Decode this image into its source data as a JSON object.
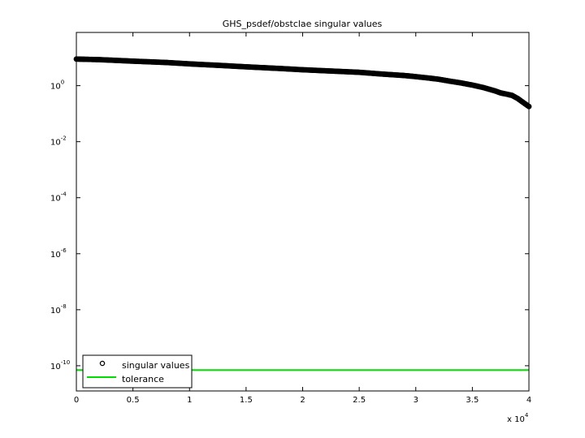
{
  "chart_data": {
    "type": "scatter",
    "title": "GHS_psdef/obstclae singular values",
    "xlabel": "",
    "ylabel": "",
    "x_multiplier_label": {
      "prefix": "x 10",
      "exponent": "4"
    },
    "xlim": [
      0,
      40000
    ],
    "ylim_log10": [
      -10.9,
      1.9
    ],
    "y_scale": "log",
    "grid": false,
    "legend_position": "bottom-left",
    "x_ticks": [
      0,
      5000,
      10000,
      15000,
      20000,
      25000,
      30000,
      35000,
      40000
    ],
    "x_tick_labels": [
      "0",
      "0.5",
      "1",
      "1.5",
      "2",
      "2.5",
      "3",
      "3.5",
      "4"
    ],
    "y_ticks_log10": [
      0,
      -2,
      -4,
      -6,
      -8,
      -10
    ],
    "y_tick_labels": [
      {
        "base": "10",
        "exp": "0"
      },
      {
        "base": "10",
        "exp": "-2"
      },
      {
        "base": "10",
        "exp": "-4"
      },
      {
        "base": "10",
        "exp": "-6"
      },
      {
        "base": "10",
        "exp": "-8"
      },
      {
        "base": "10",
        "exp": "-10"
      }
    ],
    "series": [
      {
        "name": "singular values",
        "marker": "circle",
        "color": "#000000",
        "x": [
          0,
          2000,
          5000,
          8000,
          10000,
          13000,
          15000,
          18000,
          20000,
          22000,
          25000,
          27000,
          29000,
          30000,
          31000,
          32000,
          33000,
          34000,
          35000,
          36000,
          37000,
          37500,
          38000,
          38500,
          39000,
          39500,
          40000
        ],
        "y": [
          8.9,
          8.5,
          7.5,
          6.7,
          6.0,
          5.2,
          4.7,
          4.1,
          3.7,
          3.4,
          3.0,
          2.6,
          2.3,
          2.1,
          1.9,
          1.7,
          1.45,
          1.25,
          1.05,
          0.85,
          0.65,
          0.55,
          0.5,
          0.45,
          0.35,
          0.25,
          0.18
        ]
      },
      {
        "name": "tolerance",
        "marker": "line",
        "color": "#00dd00",
        "x": [
          0,
          40000
        ],
        "y": [
          7e-11,
          7e-11
        ]
      }
    ]
  }
}
